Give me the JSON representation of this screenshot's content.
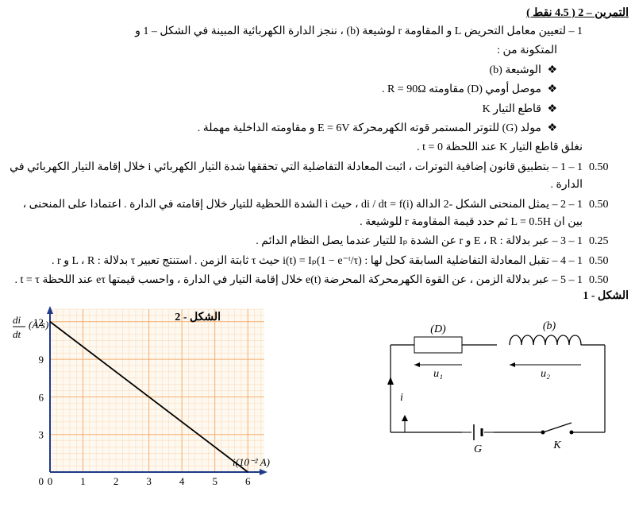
{
  "title": "التمرين – 2 ( 4.5 نقط )",
  "intro1": "1 – لتعيين معامل التحريض L و المقاومة r لوشيعة (b) ، ننجز الدارة الكهربائية المبينة في الشكل – 1 و",
  "intro2": "المتكونة من :",
  "bullets": [
    "الوشيعة (b)",
    "موصل أومي (D) مقاومته R = 90Ω .",
    "قاطع التيار K",
    "مولد (G) للتوتر المستمر قوته الكهرمحركة E = 6V و مقاومته الداخلية مهملة ."
  ],
  "close": "نغلق قاطع التيار K عند اللحظة t = 0 .",
  "questions": [
    {
      "pts": "0.50",
      "text": "1 – 1 – بتطبيق قانون إضافية التوترات ، اثبت المعادلة التفاضلية التي تحققها شدة التيار الكهربائي i خلال إقامة التيار الكهربائي في الدارة ."
    },
    {
      "pts": "0.50",
      "text": "1 – 2 – يمثل المنحنى الشكل -2 الدالة di / dt = f(i) ، حيث i الشدة اللحظية للتيار خلال إقامته في الدارة . اعتمادا على المنحنى ، بين ان L = 0.5H ثم حدد قيمة المقاومة r للوشيعة ."
    },
    {
      "pts": "0.25",
      "text": "1 – 3 – عبر بدلالة : E ، R و r عن الشدة Iₚ للتيار عندما يصل النظام الدائم ."
    },
    {
      "pts": "0.50",
      "text": "1 – 4 – تقبل المعادلة التفاضلية السابقة كحل لها : i(t) = Iₚ(1 − e⁻ᵗ/τ) حيث τ ثابتة الزمن . استنتج تعبير τ بدلالة : L ، R و r ."
    },
    {
      "pts": "0.50",
      "text": "1 – 5 – عبر بدلالة الزمن ، عن القوة الكهرمحركة المحرضة e(t) خلال إقامة التيار في الدارة ، واحسب قيمتها eτ عند اللحظة t = τ ."
    }
  ],
  "figure1_label": "الشكل - 1",
  "figure2_label": "الشكل - 2",
  "chart": {
    "x_ticks": [
      0,
      1,
      2,
      3,
      4,
      5,
      6
    ],
    "y_ticks": [
      0,
      3,
      6,
      9,
      12
    ],
    "x_axis_label": "(10⁻² A)",
    "y_axis_label": "di/dt (A/s)",
    "line_start": {
      "x": 0,
      "y": 12
    },
    "line_end": {
      "x": 6,
      "y": 0
    },
    "grid_color": "#f4a460",
    "axis_color": "#1e3a8a",
    "line_color": "#000000",
    "bg": "#fef9f0"
  },
  "circuit": {
    "D": "(D)",
    "b": "(b)",
    "u1": "u₁",
    "u2": "u₂",
    "i": "i",
    "G": "G",
    "K": "K"
  }
}
